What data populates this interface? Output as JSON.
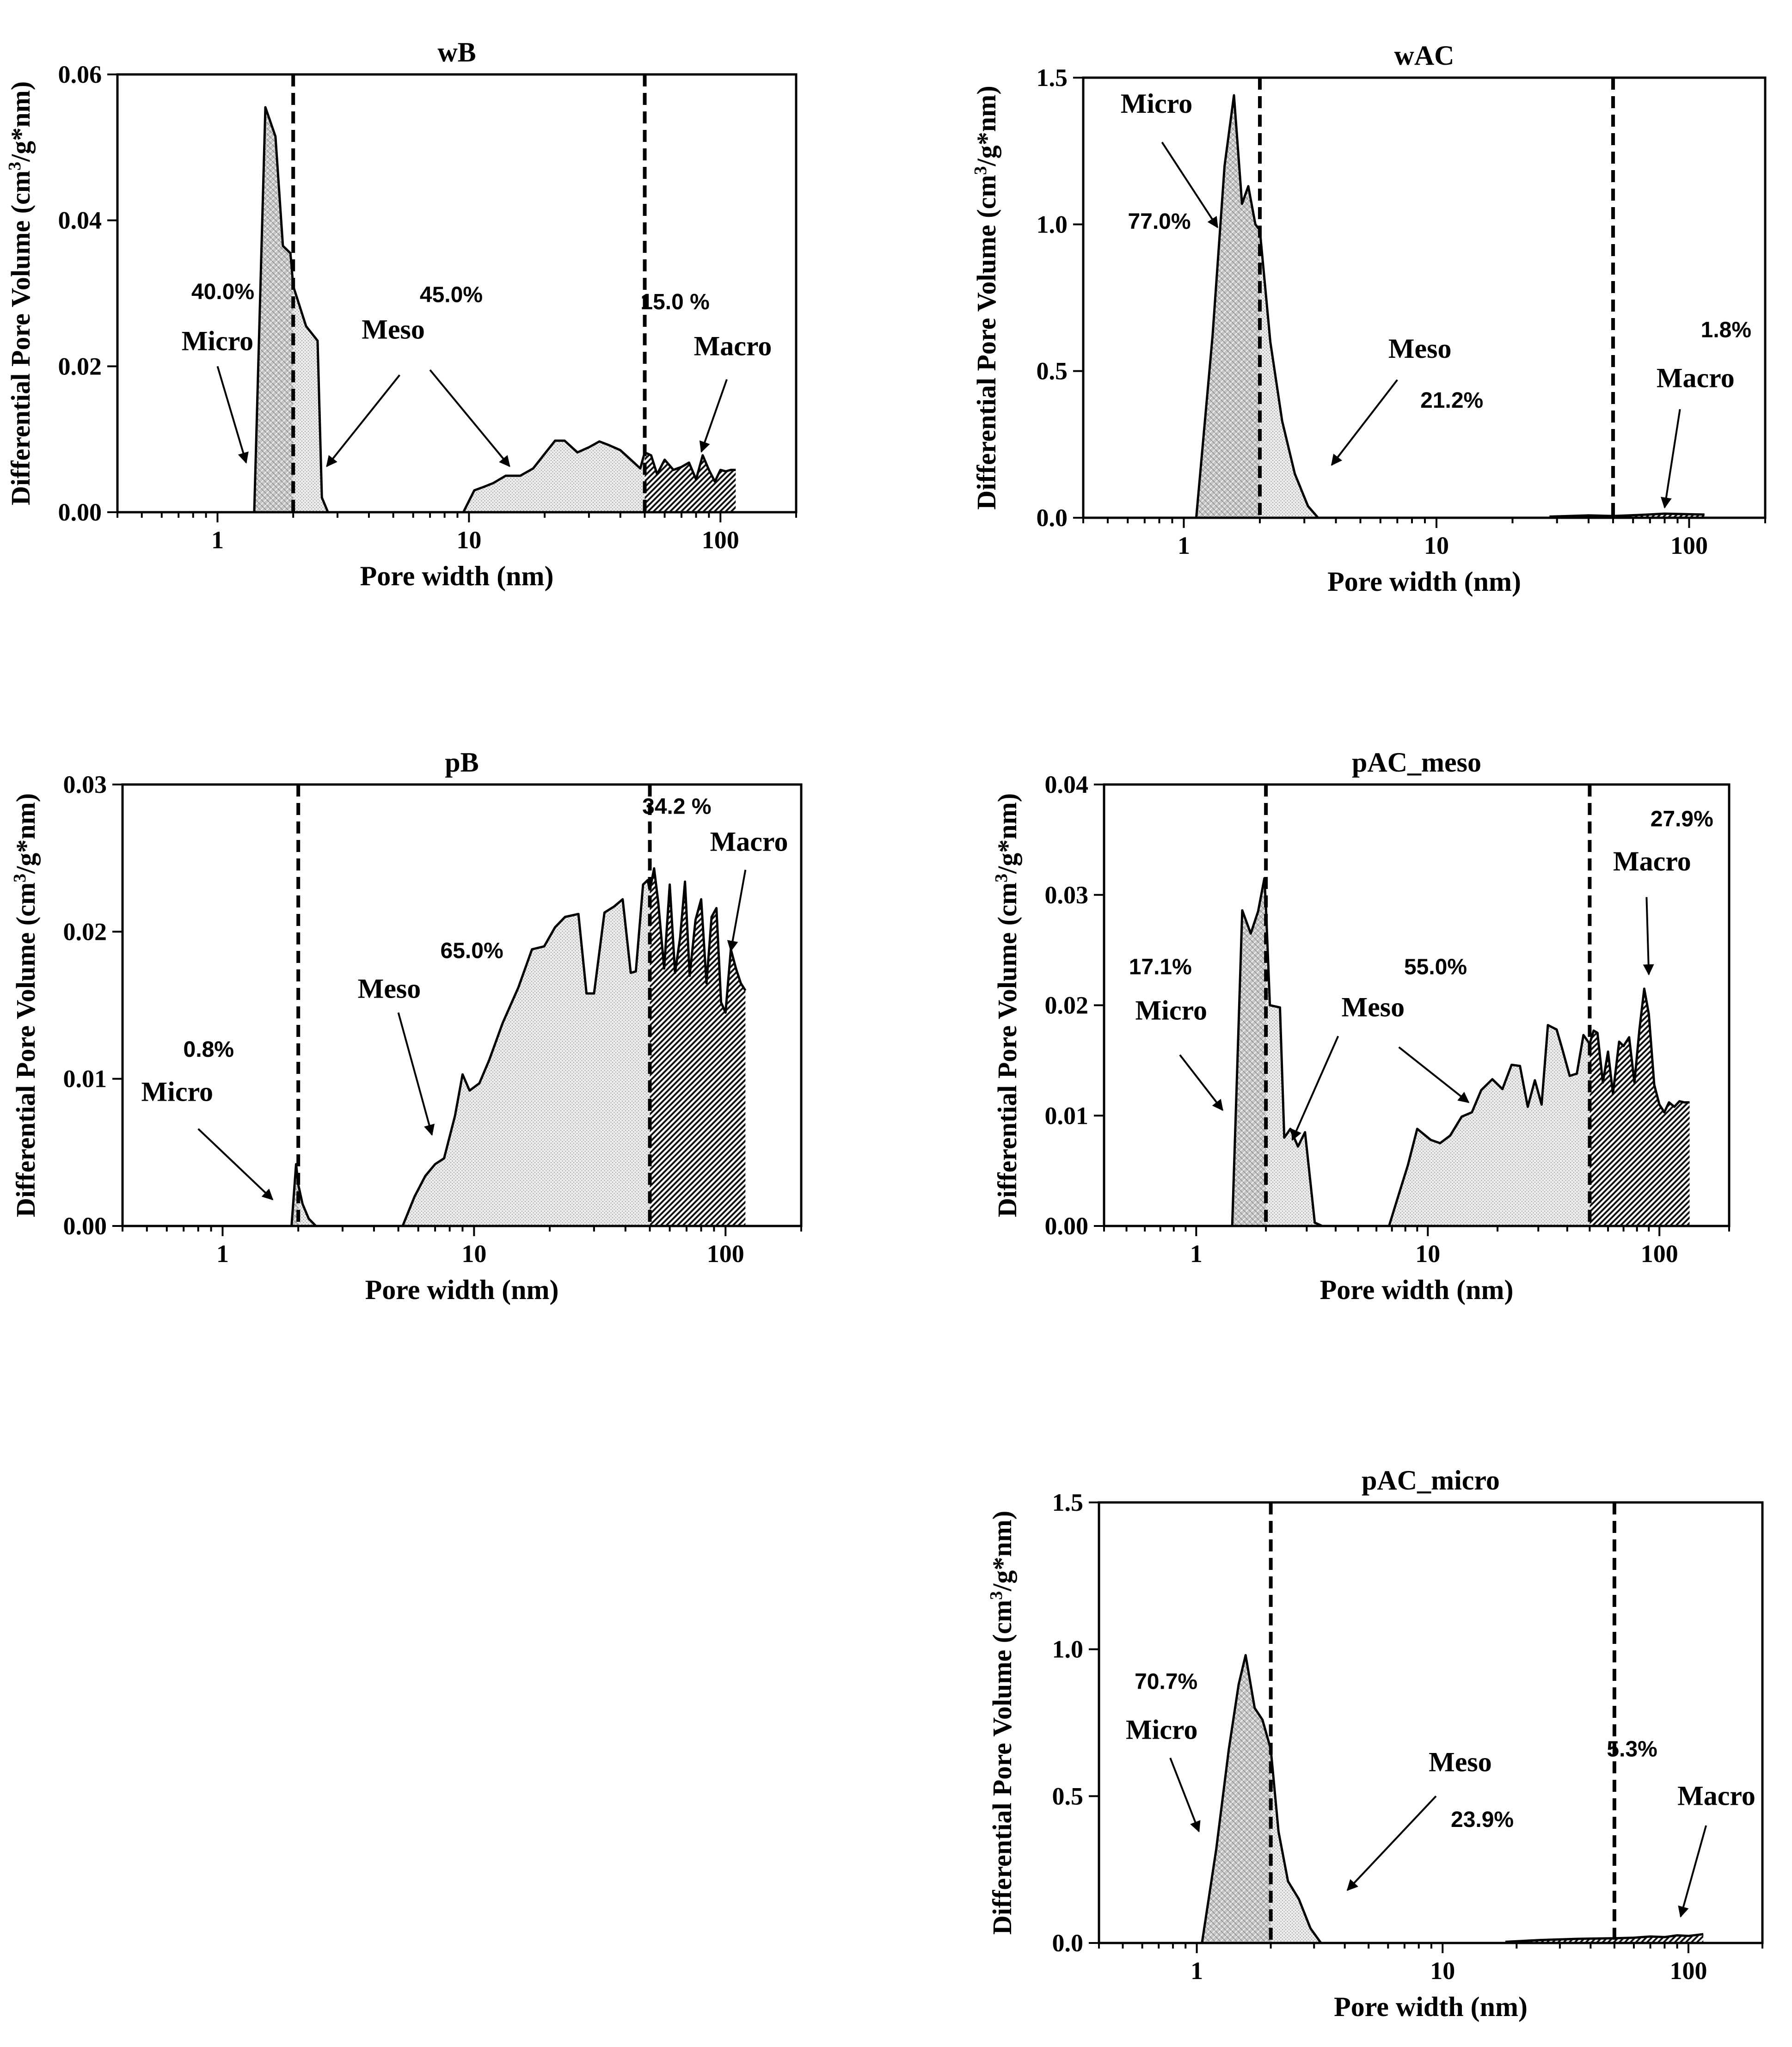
{
  "figure": {
    "common_xlabel": "Pore width (nm)",
    "common_ylabel_prefix": "Differential Pore Volume (cm",
    "common_ylabel_sup": "3",
    "common_ylabel_suffix": "/g*nm)"
  },
  "chart_data": [
    {
      "id": "wB",
      "type": "area",
      "title": "wB",
      "xlabel": "Pore width (nm)",
      "ylabel": "Differential Pore Volume (cm3/g*nm)",
      "xscale": "log",
      "xlim": [
        0.4,
        200
      ],
      "ylim": [
        0,
        0.06
      ],
      "xticks": [
        1,
        10,
        100
      ],
      "xtick_labels": [
        "1",
        "10",
        "100"
      ],
      "yticks": [
        0,
        0.02,
        0.04,
        0.06
      ],
      "ytick_labels": [
        "0.00",
        "0.02",
        "0.04",
        "0.06"
      ],
      "boundaries_nm": [
        2,
        50
      ],
      "series": [
        {
          "name": "Micro",
          "fill": "crosshatch",
          "x": [
            1.4,
            1.55,
            1.7,
            1.82,
            1.95,
            2.0
          ],
          "y": [
            0.0,
            0.0555,
            0.0515,
            0.0365,
            0.0355,
            0.031
          ]
        },
        {
          "name": "Meso",
          "fill": "stipple",
          "x": [
            2.0,
            2.25,
            2.5,
            2.6,
            2.75,
            3.0,
            9.5,
            10.5,
            11.5,
            12.5,
            14,
            16,
            18,
            20,
            22,
            24,
            27,
            30,
            33,
            36,
            40,
            44,
            48,
            50
          ],
          "y": [
            0.031,
            0.0255,
            0.0235,
            0.002,
            0.0,
            0.0,
            0.0,
            0.003,
            0.0035,
            0.004,
            0.005,
            0.005,
            0.006,
            0.008,
            0.0098,
            0.0098,
            0.0082,
            0.0089,
            0.0097,
            0.0092,
            0.0085,
            0.0072,
            0.006,
            0.0082
          ]
        },
        {
          "name": "Macro",
          "fill": "diagonal",
          "x": [
            50,
            53,
            56,
            60,
            65,
            70,
            75,
            80,
            85,
            90,
            95,
            100,
            105,
            110,
            115
          ],
          "y": [
            0.0082,
            0.0078,
            0.0052,
            0.0072,
            0.0058,
            0.0062,
            0.0068,
            0.0045,
            0.0078,
            0.0058,
            0.0042,
            0.0058,
            0.0056,
            0.0058,
            0.0058
          ]
        }
      ],
      "annotations": [
        {
          "text": "40.0%",
          "kind": "percent",
          "x": 1.05,
          "y": 0.0292
        },
        {
          "text": "Micro",
          "kind": "label",
          "x": 1.0,
          "y": 0.0222
        },
        {
          "text": "45.0%",
          "kind": "percent",
          "x": 8.5,
          "y": 0.0288
        },
        {
          "text": "Meso",
          "kind": "label",
          "x": 5.0,
          "y": 0.0238
        },
        {
          "text": "15.0 %",
          "kind": "percent",
          "x": 66,
          "y": 0.0278
        },
        {
          "text": "Macro",
          "kind": "label",
          "x": 112,
          "y": 0.0215
        }
      ],
      "arrows": [
        {
          "from": [
            1.0,
            0.02
          ],
          "to": [
            1.3,
            0.0068
          ]
        },
        {
          "from": [
            5.3,
            0.0188
          ],
          "to": [
            2.72,
            0.0063
          ]
        },
        {
          "from": [
            7.0,
            0.0195
          ],
          "to": [
            14.5,
            0.0063
          ]
        },
        {
          "from": [
            106,
            0.0182
          ],
          "to": [
            84,
            0.0083
          ]
        }
      ]
    },
    {
      "id": "wAC",
      "type": "area",
      "title": "wAC",
      "xlabel": "Pore width (nm)",
      "ylabel": "Differential Pore Volume (cm3/g*nm)",
      "xscale": "log",
      "xlim": [
        0.4,
        200
      ],
      "ylim": [
        0,
        1.5
      ],
      "xticks": [
        1,
        10,
        100
      ],
      "xtick_labels": [
        "1",
        "10",
        "100"
      ],
      "yticks": [
        0,
        0.5,
        1.0,
        1.5
      ],
      "ytick_labels": [
        "0.0",
        "0.5",
        "1.0",
        "1.5"
      ],
      "boundaries_nm": [
        2,
        50
      ],
      "series": [
        {
          "name": "Micro",
          "fill": "crosshatch",
          "x": [
            1.12,
            1.3,
            1.45,
            1.58,
            1.7,
            1.8,
            1.92,
            2.0
          ],
          "y": [
            0.0,
            0.62,
            1.2,
            1.44,
            1.07,
            1.13,
            1.0,
            0.98
          ]
        },
        {
          "name": "Meso",
          "fill": "stipple",
          "x": [
            2.0,
            2.2,
            2.45,
            2.75,
            3.1,
            3.4,
            50
          ],
          "y": [
            0.98,
            0.6,
            0.33,
            0.15,
            0.04,
            0.0,
            0.0
          ]
        },
        {
          "name": "Macro",
          "fill": "diagonal",
          "x": [
            28,
            40,
            50,
            65,
            80,
            100,
            115
          ],
          "y": [
            0.004,
            0.008,
            0.006,
            0.01,
            0.014,
            0.012,
            0.011
          ]
        }
      ],
      "annotations": [
        {
          "text": "Micro",
          "kind": "label",
          "x": 0.78,
          "y": 1.38
        },
        {
          "text": "77.0%",
          "kind": "percent",
          "x": 0.8,
          "y": 0.985
        },
        {
          "text": "Meso",
          "kind": "label",
          "x": 8.6,
          "y": 0.545
        },
        {
          "text": "21.2%",
          "kind": "percent",
          "x": 11.5,
          "y": 0.375
        },
        {
          "text": "1.8%",
          "kind": "percent",
          "x": 140,
          "y": 0.615
        },
        {
          "text": "Macro",
          "kind": "label",
          "x": 106,
          "y": 0.445
        }
      ],
      "arrows": [
        {
          "from": [
            0.82,
            1.28
          ],
          "to": [
            1.36,
            0.99
          ]
        },
        {
          "from": [
            7.0,
            0.47
          ],
          "to": [
            3.85,
            0.18
          ]
        },
        {
          "from": [
            92,
            0.37
          ],
          "to": [
            80,
            0.035
          ]
        }
      ]
    },
    {
      "id": "pB",
      "type": "area",
      "title": "pB",
      "xlabel": "Pore width (nm)",
      "ylabel": "Differential Pore Volume (cm3/g*nm)",
      "xscale": "log",
      "xlim": [
        0.4,
        200
      ],
      "ylim": [
        0,
        0.03
      ],
      "xticks": [
        1,
        10,
        100
      ],
      "xtick_labels": [
        "1",
        "10",
        "100"
      ],
      "yticks": [
        0,
        0.01,
        0.02,
        0.03
      ],
      "ytick_labels": [
        "0.00",
        "0.01",
        "0.02",
        "0.03"
      ],
      "boundaries_nm": [
        2,
        50
      ],
      "series": [
        {
          "name": "Micro",
          "fill": "crosshatch",
          "x": [
            1.88,
            1.96,
            2.0
          ],
          "y": [
            0.0,
            0.0042,
            0.0028
          ]
        },
        {
          "name": "Meso",
          "fill": "stipple",
          "x": [
            2.0,
            2.08,
            2.2,
            2.35,
            5.2,
            5.8,
            6.4,
            7.0,
            7.6,
            8.4,
            9.0,
            9.6,
            10.5,
            11.5,
            13,
            15,
            17,
            19,
            21,
            23,
            26,
            28,
            30,
            33,
            36,
            39,
            42,
            44,
            47,
            49,
            50
          ],
          "y": [
            0.0028,
            0.0015,
            0.0005,
            0.0,
            0.0,
            0.002,
            0.0034,
            0.0042,
            0.0046,
            0.0075,
            0.0103,
            0.0092,
            0.0097,
            0.0113,
            0.0138,
            0.0162,
            0.0188,
            0.019,
            0.0203,
            0.021,
            0.0212,
            0.0158,
            0.0158,
            0.0213,
            0.0217,
            0.0222,
            0.0172,
            0.0173,
            0.0232,
            0.0235,
            0.0228
          ]
        },
        {
          "name": "Macro",
          "fill": "diagonal",
          "x": [
            50,
            52,
            54,
            57,
            60,
            63,
            66,
            69,
            72,
            76,
            80,
            84,
            88,
            92,
            96,
            100,
            105,
            110,
            115,
            120
          ],
          "y": [
            0.0228,
            0.0243,
            0.022,
            0.0175,
            0.0232,
            0.0172,
            0.0196,
            0.0234,
            0.017,
            0.0208,
            0.0222,
            0.0165,
            0.021,
            0.0216,
            0.0152,
            0.0145,
            0.0188,
            0.0175,
            0.0165,
            0.016
          ]
        }
      ],
      "annotations": [
        {
          "text": "0.8%",
          "kind": "percent",
          "x": 0.88,
          "y": 0.0115
        },
        {
          "text": "Micro",
          "kind": "label",
          "x": 0.66,
          "y": 0.0085
        },
        {
          "text": "65.0%",
          "kind": "percent",
          "x": 9.8,
          "y": 0.0182
        },
        {
          "text": "Meso",
          "kind": "label",
          "x": 4.6,
          "y": 0.0155
        },
        {
          "text": "34.2 %",
          "kind": "percent",
          "x": 64,
          "y": 0.028
        },
        {
          "text": "Macro",
          "kind": "label",
          "x": 124,
          "y": 0.0255
        },
        {
          "text": "0.8%",
          "kind": "percent",
          "x": 0.88,
          "y": 0.0115
        }
      ],
      "arrows": [
        {
          "from": [
            0.8,
            0.0066
          ],
          "to": [
            1.58,
            0.0018
          ]
        },
        {
          "from": [
            5.0,
            0.0145
          ],
          "to": [
            6.8,
            0.0062
          ]
        },
        {
          "from": [
            120,
            0.0242
          ],
          "to": [
            105,
            0.0187
          ]
        }
      ]
    },
    {
      "id": "pAC_meso",
      "type": "area",
      "title": "pAC_meso",
      "xlabel": "Pore width (nm)",
      "ylabel": "Differential Pore Volume (cm3/g*nm)",
      "xscale": "log",
      "xlim": [
        0.4,
        200
      ],
      "ylim": [
        0,
        0.04
      ],
      "xticks": [
        1,
        10,
        100
      ],
      "xtick_labels": [
        "1",
        "10",
        "100"
      ],
      "yticks": [
        0,
        0.01,
        0.02,
        0.03,
        0.04
      ],
      "ytick_labels": [
        "0.00",
        "0.01",
        "0.02",
        "0.03",
        "0.04"
      ],
      "boundaries_nm": [
        2,
        50
      ],
      "series": [
        {
          "name": "Micro",
          "fill": "crosshatch",
          "x": [
            1.43,
            1.58,
            1.72,
            1.85,
            1.97,
            2.0
          ],
          "y": [
            0.0,
            0.0286,
            0.0265,
            0.0285,
            0.0315,
            0.029
          ]
        },
        {
          "name": "Meso",
          "fill": "stipple",
          "x": [
            2.0,
            2.08,
            2.3,
            2.4,
            2.55,
            2.75,
            2.95,
            3.25,
            3.5,
            6.8,
            7.4,
            8.2,
            9.0,
            10.3,
            11.3,
            12.5,
            14,
            15.5,
            17,
            19,
            21,
            23,
            25,
            27,
            29,
            31,
            33,
            36,
            38,
            41,
            44,
            47,
            50
          ],
          "y": [
            0.029,
            0.02,
            0.0198,
            0.008,
            0.0088,
            0.0072,
            0.0085,
            0.0003,
            0.0,
            0.0,
            0.0025,
            0.0055,
            0.0088,
            0.0078,
            0.0075,
            0.0082,
            0.0099,
            0.0103,
            0.0123,
            0.0133,
            0.0124,
            0.0146,
            0.0145,
            0.0108,
            0.0132,
            0.011,
            0.0182,
            0.0178,
            0.0161,
            0.0136,
            0.0138,
            0.0173,
            0.0165
          ]
        },
        {
          "name": "Macro",
          "fill": "diagonal",
          "x": [
            50,
            52,
            54,
            57,
            60,
            63,
            67,
            70,
            74,
            78,
            82,
            86,
            90,
            95,
            100,
            105,
            110,
            116,
            122,
            128,
            135
          ],
          "y": [
            0.0165,
            0.0177,
            0.0175,
            0.013,
            0.0158,
            0.012,
            0.0167,
            0.0163,
            0.0171,
            0.013,
            0.0178,
            0.0215,
            0.0192,
            0.0128,
            0.011,
            0.0103,
            0.0112,
            0.0108,
            0.0113,
            0.0112,
            0.0112
          ]
        }
      ],
      "annotations": [
        {
          "text": "17.1%",
          "kind": "percent",
          "x": 0.7,
          "y": 0.0228
        },
        {
          "text": "Micro",
          "kind": "label",
          "x": 0.78,
          "y": 0.0187
        },
        {
          "text": "55.0%",
          "kind": "percent",
          "x": 10.8,
          "y": 0.0228
        },
        {
          "text": "Meso",
          "kind": "label",
          "x": 5.8,
          "y": 0.019
        },
        {
          "text": "27.9%",
          "kind": "percent",
          "x": 125,
          "y": 0.0362
        },
        {
          "text": "Macro",
          "kind": "label",
          "x": 93,
          "y": 0.0322
        }
      ],
      "arrows": [
        {
          "from": [
            0.85,
            0.0155
          ],
          "to": [
            1.3,
            0.0105
          ]
        },
        {
          "from": [
            4.1,
            0.0172
          ],
          "to": [
            2.6,
            0.0078
          ]
        },
        {
          "from": [
            7.5,
            0.0162
          ],
          "to": [
            15,
            0.0112
          ]
        },
        {
          "from": [
            88,
            0.0298
          ],
          "to": [
            90,
            0.0228
          ]
        }
      ]
    },
    {
      "id": "pAC_micro",
      "type": "area",
      "title": "pAC_micro",
      "xlabel": "Pore width (nm)",
      "ylabel": "Differential Pore Volume (cm3/g*nm)",
      "xscale": "log",
      "xlim": [
        0.4,
        200
      ],
      "ylim": [
        0,
        1.5
      ],
      "xticks": [
        1,
        10,
        100
      ],
      "xtick_labels": [
        "1",
        "10",
        "100"
      ],
      "yticks": [
        0,
        0.5,
        1.0,
        1.5
      ],
      "ytick_labels": [
        "0.0",
        "0.5",
        "1.0",
        "1.5"
      ],
      "boundaries_nm": [
        2,
        50
      ],
      "series": [
        {
          "name": "Micro",
          "fill": "crosshatch",
          "x": [
            1.05,
            1.2,
            1.35,
            1.48,
            1.58,
            1.72,
            1.85,
            2.0
          ],
          "y": [
            0.0,
            0.32,
            0.66,
            0.88,
            0.98,
            0.8,
            0.76,
            0.66
          ]
        },
        {
          "name": "Meso",
          "fill": "stipple",
          "x": [
            2.0,
            2.15,
            2.35,
            2.6,
            2.9,
            3.2,
            50
          ],
          "y": [
            0.66,
            0.38,
            0.21,
            0.15,
            0.05,
            0.0,
            0.0
          ]
        },
        {
          "name": "Macro",
          "fill": "diagonal",
          "x": [
            18,
            25,
            35,
            50,
            60,
            70,
            80,
            90,
            100,
            110,
            115
          ],
          "y": [
            0.004,
            0.01,
            0.014,
            0.016,
            0.018,
            0.022,
            0.02,
            0.026,
            0.024,
            0.028,
            0.03
          ]
        }
      ],
      "annotations": [
        {
          "text": "70.7%",
          "kind": "percent",
          "x": 0.75,
          "y": 0.865
        },
        {
          "text": "Micro",
          "kind": "label",
          "x": 0.72,
          "y": 0.695
        },
        {
          "text": "Meso",
          "kind": "label",
          "x": 11.8,
          "y": 0.585
        },
        {
          "text": "23.9%",
          "kind": "percent",
          "x": 14.5,
          "y": 0.395
        },
        {
          "text": "5.3%",
          "kind": "percent",
          "x": 59,
          "y": 0.635
        },
        {
          "text": "Macro",
          "kind": "label",
          "x": 130,
          "y": 0.47
        }
      ],
      "arrows": [
        {
          "from": [
            0.78,
            0.63
          ],
          "to": [
            1.02,
            0.38
          ]
        },
        {
          "from": [
            9.4,
            0.5
          ],
          "to": [
            4.1,
            0.18
          ]
        },
        {
          "from": [
            118,
            0.4
          ],
          "to": [
            93,
            0.09
          ]
        }
      ]
    }
  ]
}
